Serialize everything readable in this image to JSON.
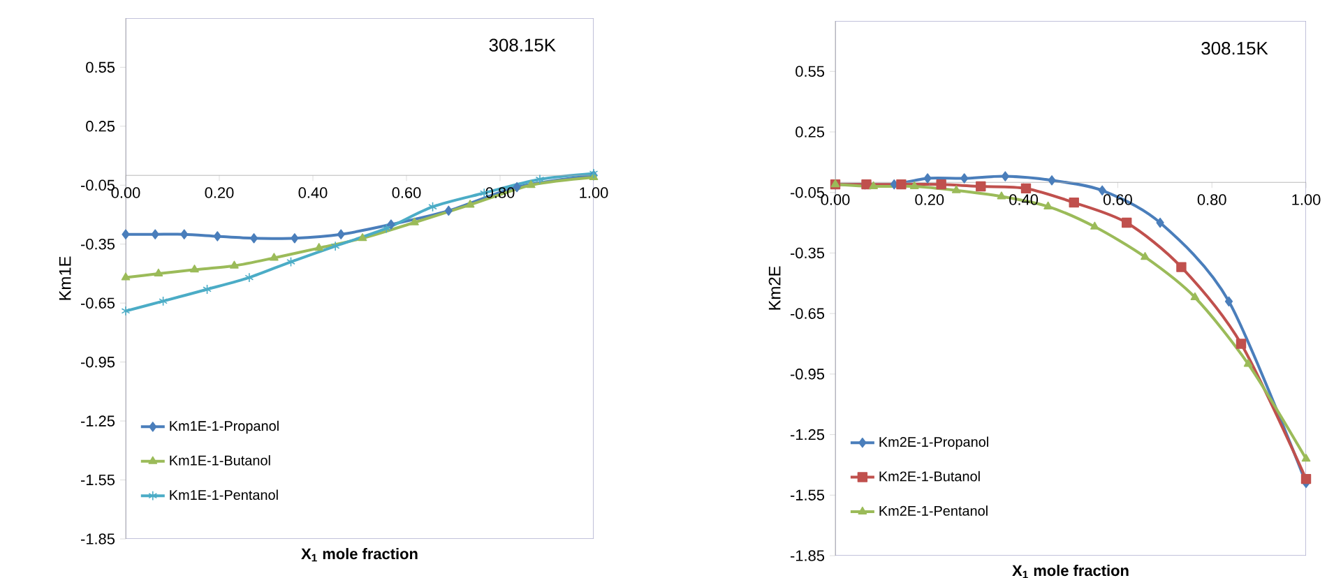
{
  "chart_data": [
    {
      "type": "line",
      "ylabel": "Km1E",
      "xlabel": "X$_{1}$ mole fraction",
      "annotations": [
        "308.15K"
      ],
      "xlim": [
        0,
        1
      ],
      "ylim": [
        -1.85,
        0.8
      ],
      "xticks": [
        {
          "value": 0,
          "label": "0.00"
        },
        {
          "value": 0.2,
          "label": "0.20"
        },
        {
          "value": 0.4,
          "label": "0.40"
        },
        {
          "value": 0.6,
          "label": "0.60"
        },
        {
          "value": 0.8,
          "label": "0.80"
        },
        {
          "value": 1,
          "label": "1.00"
        }
      ],
      "yticks": [
        -1.85,
        -1.55,
        -1.25,
        -0.95,
        -0.65,
        -0.35,
        -0.05,
        0.25,
        0.55
      ],
      "grid": false,
      "legend": "bottom left",
      "series": [
        {
          "name": "Km1E-1-Propanol",
          "color": "#4a7ebb",
          "marker": "diamond",
          "x": [
            0,
            0.063,
            0.125,
            0.196,
            0.274,
            0.361,
            0.46,
            0.567,
            0.69,
            0.836,
            1.0
          ],
          "values": [
            -0.3,
            -0.3,
            -0.3,
            -0.31,
            -0.32,
            -0.32,
            -0.3,
            -0.25,
            -0.18,
            -0.06,
            0.0
          ]
        },
        {
          "name": "Km1E-1-Butanol",
          "color": "#9bbb59",
          "marker": "triangle",
          "x": [
            0,
            0.07,
            0.147,
            0.232,
            0.317,
            0.413,
            0.506,
            0.617,
            0.736,
            0.866,
            1.0
          ],
          "values": [
            -0.52,
            -0.5,
            -0.48,
            -0.46,
            -0.42,
            -0.37,
            -0.32,
            -0.24,
            -0.15,
            -0.05,
            -0.01
          ]
        },
        {
          "name": "Km1E-1-Pentanol",
          "color": "#4bacc6",
          "marker": "cross",
          "x": [
            0,
            0.08,
            0.174,
            0.264,
            0.353,
            0.448,
            0.557,
            0.656,
            0.766,
            0.885,
            1.0
          ],
          "values": [
            -0.69,
            -0.64,
            -0.58,
            -0.52,
            -0.44,
            -0.36,
            -0.27,
            -0.16,
            -0.09,
            -0.02,
            0.01
          ]
        }
      ]
    },
    {
      "type": "line",
      "ylabel": "Km2E",
      "xlabel": "X$_{1}$ mole fraction",
      "annotations": [
        "308.15K"
      ],
      "xlim": [
        0,
        1
      ],
      "ylim": [
        -1.85,
        0.8
      ],
      "xticks": [
        {
          "value": 0,
          "label": "0.00"
        },
        {
          "value": 0.2,
          "label": "0.20"
        },
        {
          "value": 0.4,
          "label": "0.40"
        },
        {
          "value": 0.6,
          "label": "0.60"
        },
        {
          "value": 0.8,
          "label": "0.80"
        },
        {
          "value": 1,
          "label": "1.00"
        }
      ],
      "yticks": [
        -1.85,
        -1.55,
        -1.25,
        -0.95,
        -0.65,
        -0.35,
        -0.05,
        0.25,
        0.55
      ],
      "grid": false,
      "legend": "bottom left",
      "series": [
        {
          "name": "Km2E-1-Propanol",
          "color": "#4a7ebb",
          "marker": "diamond",
          "x": [
            0,
            0.063,
            0.125,
            0.196,
            0.274,
            0.361,
            0.46,
            0.567,
            0.69,
            0.836,
            1.0
          ],
          "values": [
            -0.01,
            -0.01,
            -0.01,
            0.02,
            0.02,
            0.03,
            0.01,
            -0.04,
            -0.2,
            -0.59,
            -1.49
          ]
        },
        {
          "name": "Km2E-1-Butanol",
          "color": "#c0504d",
          "marker": "square",
          "x": [
            0,
            0.066,
            0.14,
            0.225,
            0.309,
            0.405,
            0.507,
            0.619,
            0.735,
            0.862,
            1.0
          ],
          "values": [
            -0.01,
            -0.01,
            -0.01,
            -0.01,
            -0.02,
            -0.03,
            -0.1,
            -0.2,
            -0.42,
            -0.8,
            -1.47
          ]
        },
        {
          "name": "Km2E-1-Pentanol",
          "color": "#9bbb59",
          "marker": "triangle",
          "x": [
            0,
            0.081,
            0.168,
            0.257,
            0.353,
            0.452,
            0.551,
            0.658,
            0.764,
            0.877,
            1.0
          ],
          "values": [
            -0.01,
            -0.02,
            -0.02,
            -0.04,
            -0.07,
            -0.12,
            -0.22,
            -0.37,
            -0.57,
            -0.9,
            -1.37
          ]
        }
      ]
    }
  ]
}
